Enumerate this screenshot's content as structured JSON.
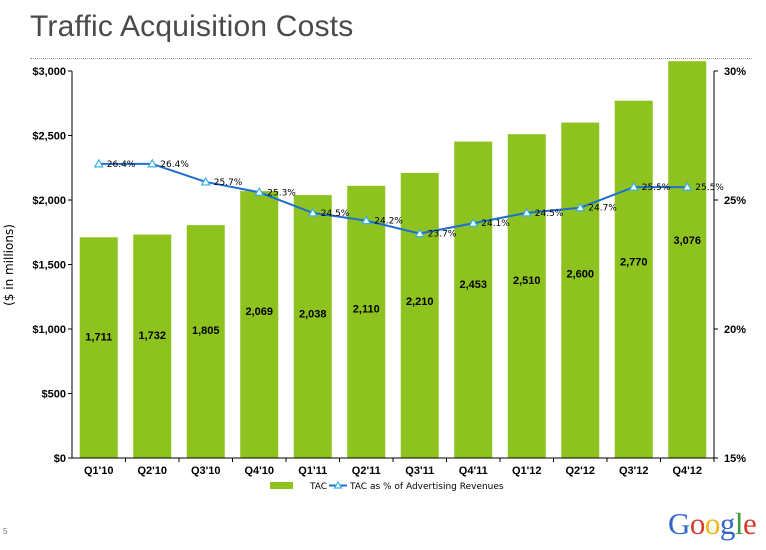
{
  "slide": {
    "title": "Traffic Acquisition Costs",
    "page_number": "5"
  },
  "logo": {
    "letters": [
      "G",
      "o",
      "o",
      "g",
      "l",
      "e"
    ],
    "colors": [
      "#3366cc",
      "#d73b2d",
      "#f2b50f",
      "#3366cc",
      "#3a9a3a",
      "#d73b2d"
    ]
  },
  "chart_data": {
    "type": "bar",
    "categories": [
      "Q1'10",
      "Q2'10",
      "Q3'10",
      "Q4'10",
      "Q1'11",
      "Q2'11",
      "Q3'11",
      "Q4'11",
      "Q1'12",
      "Q2'12",
      "Q3'12",
      "Q4'12"
    ],
    "series": [
      {
        "name": "TAC",
        "axis": "left",
        "type": "bar",
        "values": [
          1711,
          1732,
          1805,
          2069,
          2038,
          2110,
          2210,
          2453,
          2510,
          2600,
          2770,
          3076
        ],
        "value_labels": [
          "1,711",
          "1,732",
          "1,805",
          "2,069",
          "2,038",
          "2,110",
          "2,210",
          "2,453",
          "2,510",
          "2,600",
          "2,770",
          "3,076"
        ],
        "color": "#8dc21f"
      },
      {
        "name": "TAC as % of Advertising Revenues",
        "axis": "right",
        "type": "line",
        "values": [
          26.4,
          26.4,
          25.7,
          25.3,
          24.5,
          24.2,
          23.7,
          24.1,
          24.5,
          24.7,
          25.5,
          25.5
        ],
        "value_labels": [
          "26.4%",
          "26.4%",
          "25.7%",
          "25.3%",
          "24.5%",
          "24.2%",
          "23.7%",
          "24.1%",
          "24.5%",
          "24.7%",
          "25.5%",
          "25.5%"
        ],
        "color": "#1f6fd0"
      }
    ],
    "y_left": {
      "label": "($ in millions)",
      "ylim": [
        0,
        3000
      ],
      "ticks": [
        0,
        500,
        1000,
        1500,
        2000,
        2500,
        3000
      ],
      "tick_labels": [
        "$0",
        "$500",
        "$1,000",
        "$1,500",
        "$2,000",
        "$2,500",
        "$3,000"
      ]
    },
    "y_right": {
      "ylim": [
        15,
        30
      ],
      "ticks": [
        15,
        20,
        25,
        30
      ],
      "tick_labels": [
        "15%",
        "20%",
        "25%",
        "30%"
      ]
    },
    "legend": {
      "position": "bottom",
      "entries": [
        "TAC",
        "TAC as % of Advertising Revenues"
      ]
    },
    "grid": false
  }
}
